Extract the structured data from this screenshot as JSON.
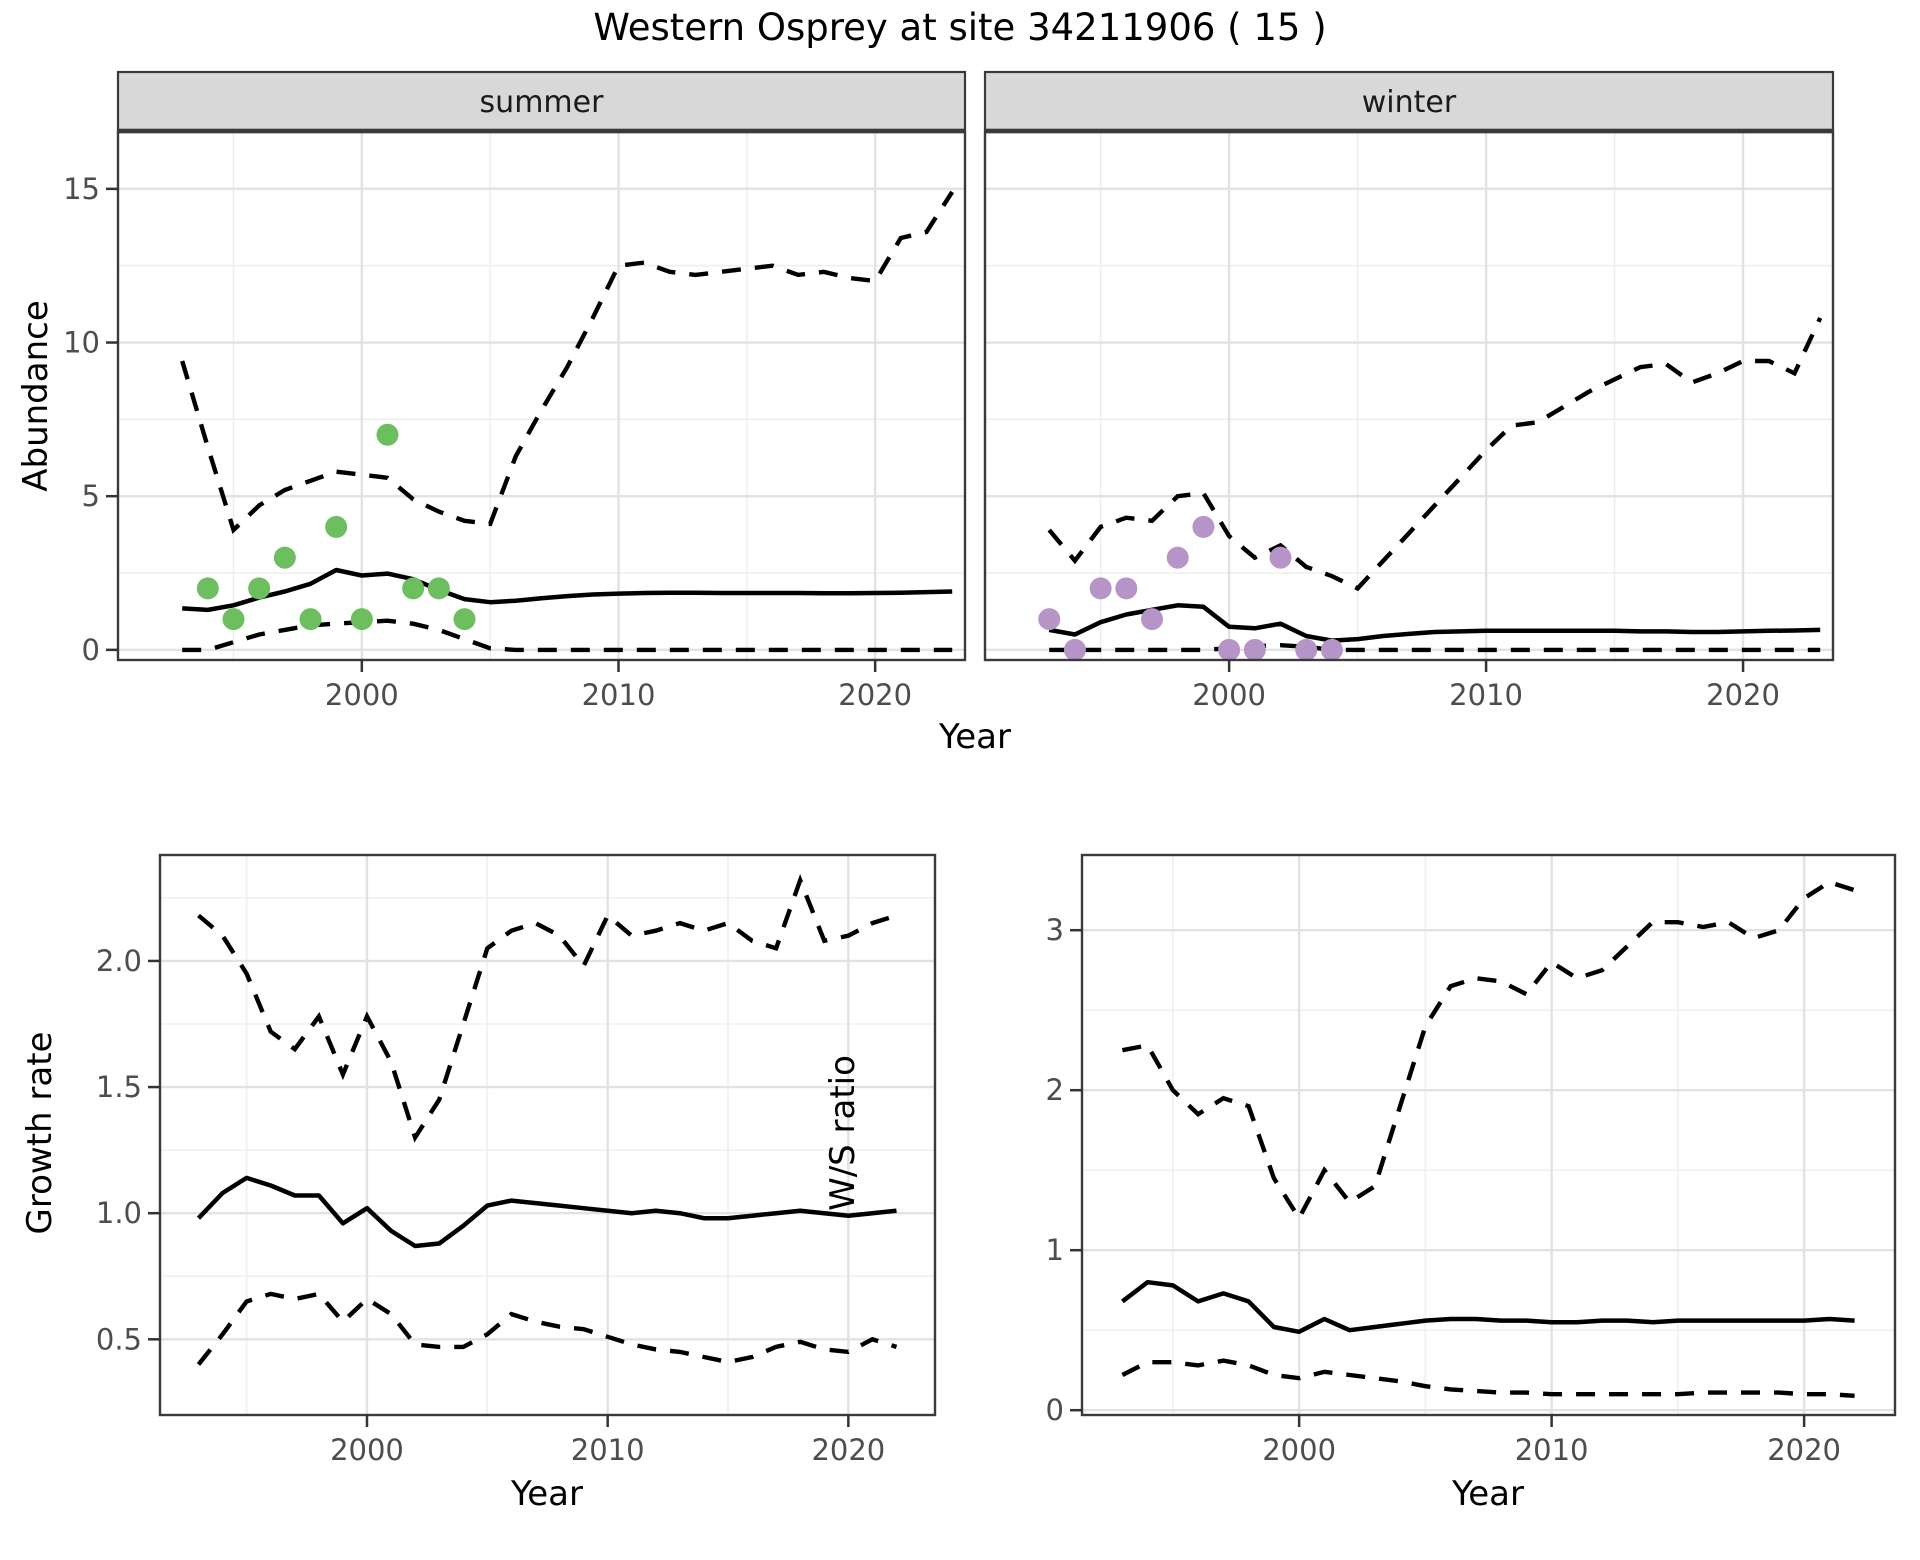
{
  "title": "Western Osprey at site 34211906 ( 15 )",
  "labels": {
    "abundance": "Abundance",
    "year": "Year",
    "growth_rate": "Growth rate",
    "ws_ratio": "W/S ratio"
  },
  "colors": {
    "background": "#FFFFFF",
    "line": "#000000",
    "grid_major": "#E2E2E2",
    "grid_minor": "#EFEFEF",
    "border": "#3A3A3A",
    "tick": "#333333",
    "tick_label": "#4D4D4D",
    "strip_bg": "#D8D8D8",
    "strip_text": "#1A1A1A",
    "summer_point": "#6CBE5E",
    "winter_point": "#B794C7"
  },
  "chart_data": [
    {
      "id": "abundance-summer",
      "type": "line",
      "facet_label": "summer",
      "xlabel": "Year",
      "ylabel": "Abundance",
      "xlim": [
        1990.5,
        2023.5
      ],
      "ylim": [
        -0.33,
        16.85
      ],
      "x_breaks": [
        2000,
        2010,
        2020
      ],
      "x_tick_labels": [
        "2000",
        "2010",
        "2020"
      ],
      "x_minor_breaks": [
        1995,
        2005,
        2015
      ],
      "y_breaks": [
        0,
        5,
        10,
        15
      ],
      "y_tick_labels": [
        "0",
        "5",
        "10",
        "15"
      ],
      "y_minor_breaks": [
        2.5,
        7.5,
        12.5
      ],
      "years": [
        1993,
        1994,
        1995,
        1996,
        1997,
        1998,
        1999,
        2000,
        2001,
        2002,
        2003,
        2004,
        2005,
        2006,
        2007,
        2008,
        2009,
        2010,
        2011,
        2012,
        2013,
        2014,
        2015,
        2016,
        2017,
        2018,
        2019,
        2020,
        2021,
        2022,
        2023
      ],
      "series": {
        "median": [
          1.35,
          1.3,
          1.45,
          1.7,
          1.9,
          2.15,
          2.6,
          2.42,
          2.48,
          2.3,
          1.95,
          1.65,
          1.55,
          1.6,
          1.68,
          1.75,
          1.8,
          1.83,
          1.85,
          1.86,
          1.86,
          1.85,
          1.85,
          1.85,
          1.85,
          1.84,
          1.84,
          1.85,
          1.86,
          1.88,
          1.9
        ],
        "upper": [
          9.4,
          6.6,
          3.9,
          4.7,
          5.2,
          5.5,
          5.8,
          5.7,
          5.6,
          4.9,
          4.5,
          4.2,
          4.1,
          6.3,
          7.8,
          9.2,
          10.8,
          12.5,
          12.6,
          12.3,
          12.2,
          12.3,
          12.4,
          12.5,
          12.2,
          12.3,
          12.1,
          12.0,
          13.4,
          13.6,
          14.9
        ],
        "lower": [
          0,
          0,
          0.25,
          0.5,
          0.65,
          0.8,
          0.85,
          0.9,
          0.95,
          0.85,
          0.65,
          0.35,
          0.05,
          0,
          0,
          0,
          0,
          0,
          0,
          0,
          0,
          0,
          0,
          0,
          0,
          0,
          0,
          0,
          0,
          0,
          0
        ]
      },
      "observations": {
        "years": [
          1994,
          1995,
          1996,
          1997,
          1998,
          1999,
          2000,
          2001,
          2002,
          2003,
          2004
        ],
        "values": [
          2,
          1,
          2,
          3,
          1,
          4,
          1,
          7,
          2,
          2,
          1
        ]
      },
      "point_color": "#6CBE5E",
      "show_y_tick_labels": true
    },
    {
      "id": "abundance-winter",
      "type": "line",
      "facet_label": "winter",
      "xlabel": "Year",
      "ylabel": "Abundance",
      "xlim": [
        1990.5,
        2023.5
      ],
      "ylim": [
        -0.33,
        16.85
      ],
      "x_breaks": [
        2000,
        2010,
        2020
      ],
      "x_tick_labels": [
        "2000",
        "2010",
        "2020"
      ],
      "x_minor_breaks": [
        1995,
        2005,
        2015
      ],
      "y_breaks": [
        0,
        5,
        10,
        15
      ],
      "y_tick_labels": [
        "0",
        "5",
        "10",
        "15"
      ],
      "y_minor_breaks": [
        2.5,
        7.5,
        12.5
      ],
      "years": [
        1993,
        1994,
        1995,
        1996,
        1997,
        1998,
        1999,
        2000,
        2001,
        2002,
        2003,
        2004,
        2005,
        2006,
        2007,
        2008,
        2009,
        2010,
        2011,
        2012,
        2013,
        2014,
        2015,
        2016,
        2017,
        2018,
        2019,
        2020,
        2021,
        2022,
        2023
      ],
      "series": {
        "median": [
          0.65,
          0.5,
          0.9,
          1.15,
          1.3,
          1.45,
          1.4,
          0.75,
          0.7,
          0.85,
          0.45,
          0.3,
          0.35,
          0.45,
          0.52,
          0.58,
          0.6,
          0.62,
          0.62,
          0.62,
          0.62,
          0.62,
          0.62,
          0.6,
          0.6,
          0.58,
          0.58,
          0.6,
          0.62,
          0.63,
          0.65
        ],
        "upper": [
          3.9,
          2.9,
          4.0,
          4.3,
          4.2,
          5.0,
          5.1,
          3.7,
          3.0,
          3.4,
          2.7,
          2.4,
          2.0,
          2.9,
          3.8,
          4.7,
          5.6,
          6.5,
          7.3,
          7.4,
          7.9,
          8.4,
          8.8,
          9.2,
          9.3,
          8.7,
          9.0,
          9.4,
          9.4,
          9.0,
          10.8
        ],
        "lower": [
          0,
          0,
          0,
          0,
          0,
          0,
          0,
          0.05,
          0.12,
          0.15,
          0.1,
          0,
          0,
          0,
          0,
          0,
          0,
          0,
          0,
          0,
          0,
          0,
          0,
          0,
          0,
          0,
          0,
          0,
          0,
          0,
          0
        ]
      },
      "observations": {
        "years": [
          1993,
          1994,
          1995,
          1996,
          1997,
          1998,
          1999,
          2000,
          2001,
          2002,
          2003,
          2004
        ],
        "values": [
          1,
          0,
          2,
          2,
          1,
          3,
          4,
          0,
          0,
          3,
          0,
          0
        ]
      },
      "point_color": "#B794C7",
      "show_y_tick_labels": false
    },
    {
      "id": "growth-rate",
      "type": "line",
      "facet_label": "",
      "xlabel": "Year",
      "ylabel": "Growth rate",
      "xlim": [
        1991.4,
        2023.6
      ],
      "ylim": [
        0.2,
        2.42
      ],
      "x_breaks": [
        2000,
        2010,
        2020
      ],
      "x_tick_labels": [
        "2000",
        "2010",
        "2020"
      ],
      "x_minor_breaks": [
        1995,
        2005,
        2015
      ],
      "y_breaks": [
        0.5,
        1.0,
        1.5,
        2.0
      ],
      "y_tick_labels": [
        "0.5",
        "1.0",
        "1.5",
        "2.0"
      ],
      "y_minor_breaks": [
        0.75,
        1.25,
        1.75,
        2.25
      ],
      "years": [
        1993,
        1994,
        1995,
        1996,
        1997,
        1998,
        1999,
        2000,
        2001,
        2002,
        2003,
        2004,
        2005,
        2006,
        2007,
        2008,
        2009,
        2010,
        2011,
        2012,
        2013,
        2014,
        2015,
        2016,
        2017,
        2018,
        2019,
        2020,
        2021,
        2022
      ],
      "series": {
        "median": [
          0.98,
          1.08,
          1.14,
          1.11,
          1.07,
          1.07,
          0.96,
          1.02,
          0.93,
          0.87,
          0.88,
          0.95,
          1.03,
          1.05,
          1.04,
          1.03,
          1.02,
          1.01,
          1.0,
          1.01,
          1.0,
          0.98,
          0.98,
          0.99,
          1.0,
          1.01,
          1.0,
          0.99,
          1.0,
          1.01
        ],
        "upper": [
          2.18,
          2.1,
          1.95,
          1.72,
          1.65,
          1.78,
          1.55,
          1.78,
          1.6,
          1.3,
          1.45,
          1.75,
          2.05,
          2.12,
          2.15,
          2.1,
          1.98,
          2.18,
          2.1,
          2.12,
          2.15,
          2.12,
          2.15,
          2.08,
          2.05,
          2.32,
          2.08,
          2.1,
          2.15,
          2.18
        ],
        "lower": [
          0.4,
          0.52,
          0.65,
          0.68,
          0.66,
          0.68,
          0.57,
          0.66,
          0.6,
          0.48,
          0.47,
          0.47,
          0.52,
          0.6,
          0.57,
          0.55,
          0.54,
          0.51,
          0.48,
          0.46,
          0.45,
          0.43,
          0.41,
          0.43,
          0.47,
          0.49,
          0.46,
          0.45,
          0.5,
          0.47
        ]
      },
      "observations": null,
      "point_color": null,
      "show_y_tick_labels": true
    },
    {
      "id": "ws-ratio",
      "type": "line",
      "facet_label": "",
      "xlabel": "Year",
      "ylabel": "W/S ratio",
      "xlim": [
        1991.4,
        2023.6
      ],
      "ylim": [
        -0.03,
        3.47
      ],
      "x_breaks": [
        2000,
        2010,
        2020
      ],
      "x_tick_labels": [
        "2000",
        "2010",
        "2020"
      ],
      "x_minor_breaks": [
        1995,
        2005,
        2015
      ],
      "y_breaks": [
        0,
        1,
        2,
        3
      ],
      "y_tick_labels": [
        "0",
        "1",
        "2",
        "3"
      ],
      "y_minor_breaks": [
        0.5,
        1.5,
        2.5
      ],
      "years": [
        1993,
        1994,
        1995,
        1996,
        1997,
        1998,
        1999,
        2000,
        2001,
        2002,
        2003,
        2004,
        2005,
        2006,
        2007,
        2008,
        2009,
        2010,
        2011,
        2012,
        2013,
        2014,
        2015,
        2016,
        2017,
        2018,
        2019,
        2020,
        2021,
        2022
      ],
      "series": {
        "median": [
          0.68,
          0.8,
          0.78,
          0.68,
          0.73,
          0.68,
          0.52,
          0.49,
          0.57,
          0.5,
          0.52,
          0.54,
          0.56,
          0.57,
          0.57,
          0.56,
          0.56,
          0.55,
          0.55,
          0.56,
          0.56,
          0.55,
          0.56,
          0.56,
          0.56,
          0.56,
          0.56,
          0.56,
          0.57,
          0.56
        ],
        "upper": [
          2.25,
          2.28,
          2.0,
          1.85,
          1.95,
          1.9,
          1.45,
          1.2,
          1.5,
          1.3,
          1.4,
          1.9,
          2.4,
          2.65,
          2.7,
          2.68,
          2.6,
          2.8,
          2.7,
          2.75,
          2.9,
          3.05,
          3.05,
          3.02,
          3.05,
          2.95,
          3.0,
          3.2,
          3.3,
          3.25
        ],
        "lower": [
          0.22,
          0.3,
          0.3,
          0.28,
          0.31,
          0.28,
          0.22,
          0.2,
          0.24,
          0.22,
          0.2,
          0.18,
          0.15,
          0.13,
          0.12,
          0.11,
          0.11,
          0.1,
          0.1,
          0.1,
          0.1,
          0.1,
          0.1,
          0.11,
          0.11,
          0.11,
          0.11,
          0.1,
          0.1,
          0.09
        ]
      },
      "observations": null,
      "point_color": null,
      "show_y_tick_labels": true
    }
  ]
}
